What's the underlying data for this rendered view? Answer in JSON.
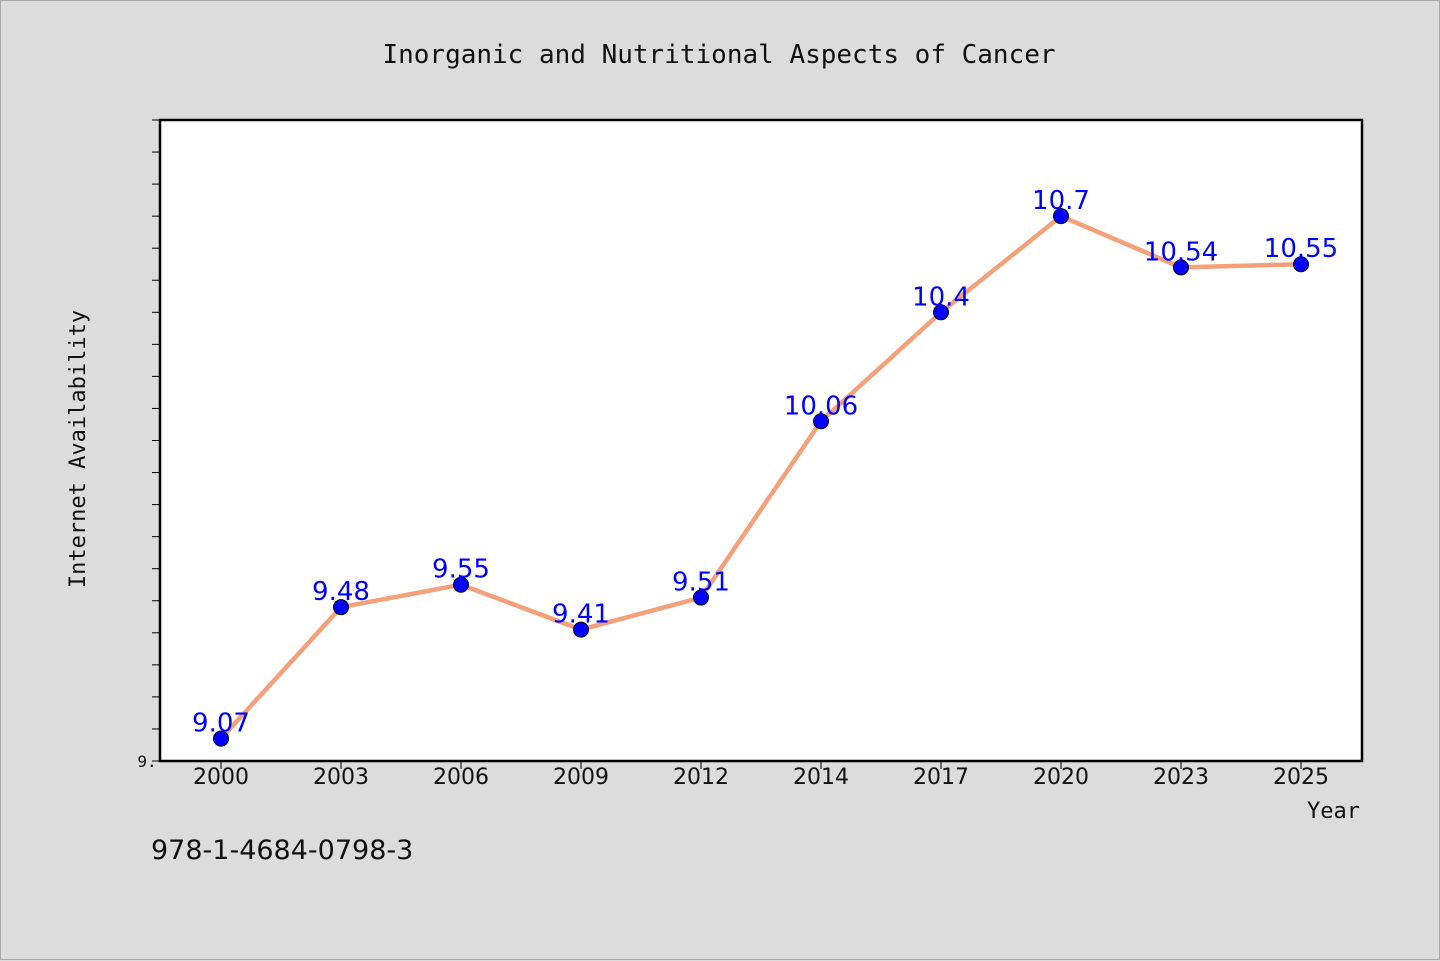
{
  "isbn": "978-1-4684-0798-3",
  "chart_data": {
    "type": "line",
    "title": "Inorganic and Nutritional Aspects of Cancer",
    "xlabel": "Year",
    "ylabel": "Internet Availability",
    "categories": [
      "2000",
      "2003",
      "2006",
      "2009",
      "2012",
      "2014",
      "2017",
      "2020",
      "2023",
      "2025"
    ],
    "values": [
      9.07,
      9.48,
      9.55,
      9.41,
      9.51,
      10.06,
      10.4,
      10.7,
      10.54,
      10.55
    ],
    "data_labels": [
      "9.07",
      "9.48",
      "9.55",
      "9.41",
      "9.51",
      "10.06",
      "10.4",
      "10.7",
      "10.54",
      "10.55"
    ],
    "y_tick_label": "9.",
    "ylim": [
      9.0,
      11.0
    ],
    "grid": false,
    "colors": {
      "line": "#f4a07a",
      "marker": "#0000ff",
      "data_label": "#0000ff",
      "background": "#dcdcdc",
      "plot_area": "#ffffff"
    }
  }
}
